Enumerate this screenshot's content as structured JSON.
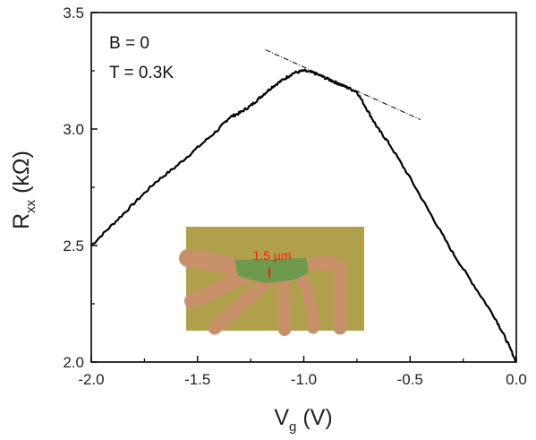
{
  "chart_data": {
    "type": "line",
    "xlabel": {
      "main": "V",
      "sub": "g",
      "unit": " (V)"
    },
    "ylabel": {
      "main": "R",
      "sub": "xx",
      "unit": " (kΩ)"
    },
    "xlim": [
      -2.0,
      0.0
    ],
    "ylim": [
      2.0,
      3.5
    ],
    "xticks": [
      "-2.0",
      "-1.5",
      "-1.0",
      "-0.5",
      "0.0"
    ],
    "yticks": [
      "2.0",
      "2.5",
      "3.0",
      "3.5"
    ],
    "grid": false,
    "annotations": [
      "B = 0",
      "T = 0.3K"
    ],
    "series": [
      {
        "color": "#000000",
        "x": [
          -2.0,
          -1.9,
          -1.8,
          -1.7,
          -1.6,
          -1.5,
          -1.4,
          -1.35,
          -1.3,
          -1.25,
          -1.2,
          -1.15,
          -1.1,
          -1.05,
          -1.0,
          -0.95,
          -0.9,
          -0.85,
          -0.8,
          -0.75,
          -0.7,
          -0.65,
          -0.6,
          -0.5,
          -0.4,
          -0.3,
          -0.2,
          -0.1,
          -0.05,
          0.0
        ],
        "y": [
          2.5,
          2.59,
          2.68,
          2.77,
          2.84,
          2.92,
          3.0,
          3.05,
          3.07,
          3.1,
          3.14,
          3.18,
          3.21,
          3.24,
          3.25,
          3.24,
          3.22,
          3.2,
          3.18,
          3.16,
          3.08,
          3.0,
          2.94,
          2.79,
          2.63,
          2.47,
          2.33,
          2.19,
          2.1,
          2.0
        ]
      }
    ],
    "tangent_line": {
      "x": [
        -1.18,
        -0.45
      ],
      "y": [
        3.34,
        3.04
      ],
      "style": "dash-dot"
    },
    "inset": {
      "scale_bar_label": "1.5 µm",
      "label_color": "#ff1a1a",
      "background_color": "#b0a04c",
      "flake_color": "#6f9a4e",
      "electrode_color": "#c89068"
    }
  }
}
